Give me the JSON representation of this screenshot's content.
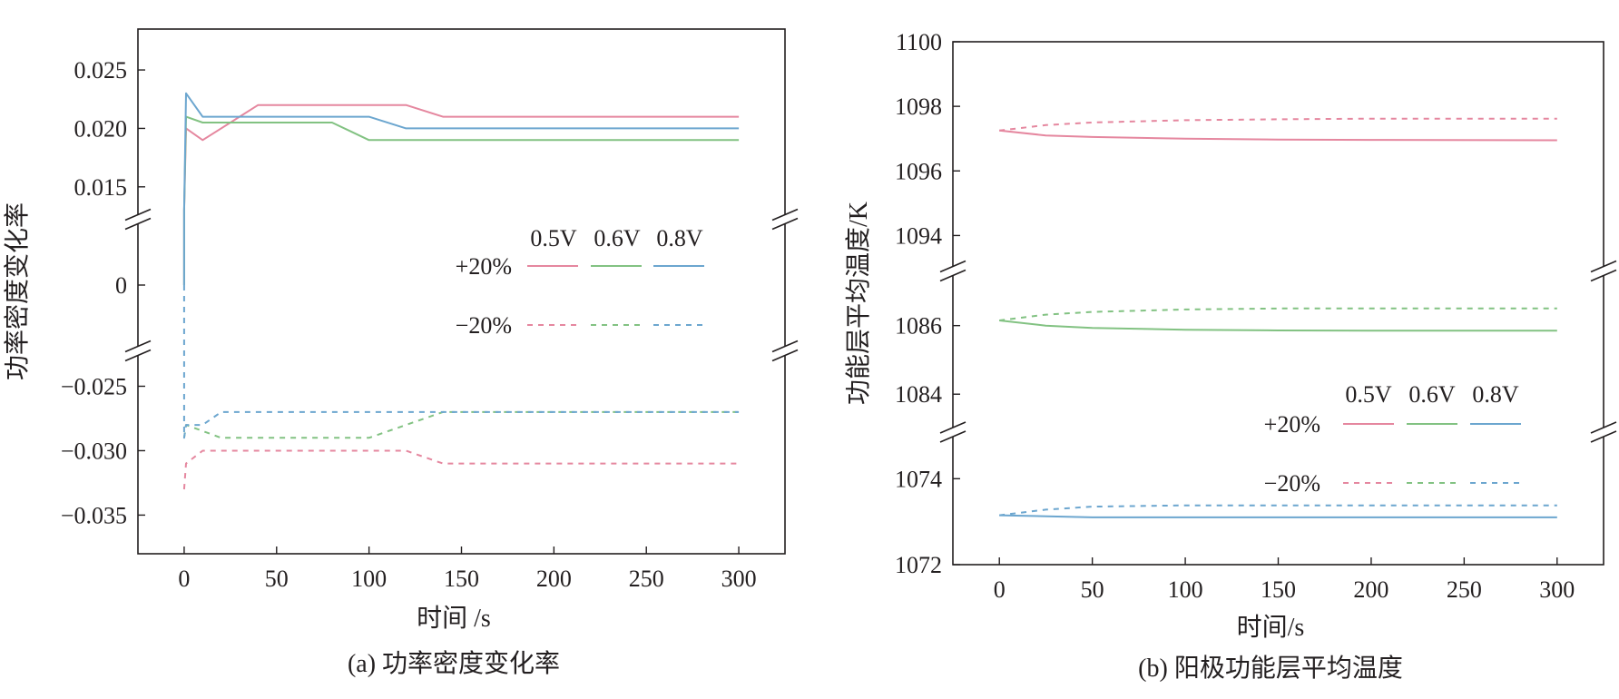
{
  "chart_data": [
    {
      "type": "line",
      "caption": "(a) 功率密度变化率",
      "xlabel": "时间 /s",
      "ylabel": "功率密度变化率",
      "xlim": [
        -25,
        325
      ],
      "x_ticks": [
        0,
        50,
        100,
        150,
        200,
        250,
        300
      ],
      "broken_y_axis": true,
      "y_panels": [
        {
          "ylim": [
            0.0125,
            0.0285
          ],
          "ticks": [
            0.015,
            0.02,
            0.025
          ],
          "tick_labels": [
            "0.015",
            "0.020",
            "0.025"
          ]
        },
        {
          "ylim": [
            -0.003,
            0.003
          ],
          "ticks": [
            0
          ],
          "tick_labels": [
            "0"
          ]
        },
        {
          "ylim": [
            -0.038,
            -0.0225
          ],
          "ticks": [
            -0.035,
            -0.03,
            -0.025
          ],
          "tick_labels": [
            "−0.035",
            "−0.030",
            "−0.025"
          ]
        }
      ],
      "legend": {
        "placement": "center-right",
        "voltages": [
          "0.5V",
          "0.6V",
          "0.8V"
        ],
        "rows": [
          "+20%",
          "−20%"
        ]
      },
      "colors": {
        "0.5V": "#e5879f",
        "0.6V": "#82c282",
        "0.8V": "#6ca6cf"
      },
      "series": [
        {
          "name": "+20% 0.5V",
          "voltage": "0.5V",
          "style": "solid",
          "x": [
            0,
            0,
            1,
            10,
            40,
            120,
            140,
            300
          ],
          "y": [
            0,
            0.013,
            0.02,
            0.019,
            0.022,
            0.022,
            0.021,
            0.021
          ]
        },
        {
          "name": "+20% 0.6V",
          "voltage": "0.6V",
          "style": "solid",
          "x": [
            0,
            0,
            1,
            10,
            80,
            100,
            300
          ],
          "y": [
            0,
            0.013,
            0.021,
            0.0205,
            0.0205,
            0.019,
            0.019
          ]
        },
        {
          "name": "+20% 0.8V",
          "voltage": "0.8V",
          "style": "solid",
          "x": [
            0,
            0,
            1,
            10,
            100,
            120,
            300
          ],
          "y": [
            0,
            0.013,
            0.023,
            0.021,
            0.021,
            0.02,
            0.02
          ]
        },
        {
          "name": "−20% 0.5V",
          "voltage": "0.5V",
          "style": "dashed",
          "x": [
            0,
            1,
            10,
            120,
            140,
            300
          ],
          "y": [
            -0.033,
            -0.031,
            -0.03,
            -0.03,
            -0.031,
            -0.031
          ]
        },
        {
          "name": "−20% 0.6V",
          "voltage": "0.6V",
          "style": "dashed",
          "x": [
            0,
            1,
            20,
            100,
            140,
            300
          ],
          "y": [
            -0.029,
            -0.028,
            -0.029,
            -0.029,
            -0.027,
            -0.027
          ]
        },
        {
          "name": "−20% 0.8V",
          "voltage": "0.8V",
          "style": "dashed",
          "x": [
            0,
            0,
            1,
            10,
            20,
            300
          ],
          "y": [
            0,
            -0.029,
            -0.028,
            -0.028,
            -0.027,
            -0.027
          ]
        }
      ]
    },
    {
      "type": "line",
      "caption": "(b) 阳极功能层平均温度",
      "xlabel": "时间/s",
      "ylabel": "功能层平均温度/K",
      "xlim": [
        -25,
        325
      ],
      "x_ticks": [
        0,
        50,
        100,
        150,
        200,
        250,
        300
      ],
      "broken_y_axis": true,
      "y_panels": [
        {
          "ylim": [
            1093,
            1100
          ],
          "ticks": [
            1094,
            1096,
            1098,
            1100
          ],
          "tick_labels": [
            "1094",
            "1096",
            "1098",
            "1100"
          ]
        },
        {
          "ylim": [
            1083,
            1087.5
          ],
          "ticks": [
            1084,
            1086
          ],
          "tick_labels": [
            "1084",
            "1086"
          ]
        },
        {
          "ylim": [
            1072,
            1075
          ],
          "ticks": [
            1072,
            1074
          ],
          "tick_labels": [
            "1072",
            "1074"
          ]
        }
      ],
      "legend": {
        "placement": "lower-right",
        "voltages": [
          "0.5V",
          "0.6V",
          "0.8V"
        ],
        "rows": [
          "+20%",
          "−20%"
        ]
      },
      "colors": {
        "0.5V": "#e5879f",
        "0.6V": "#82c282",
        "0.8V": "#6ca6cf"
      },
      "series": [
        {
          "name": "+20% 0.5V",
          "voltage": "0.5V",
          "style": "solid",
          "x": [
            0,
            25,
            50,
            100,
            150,
            200,
            300
          ],
          "y": [
            1097.25,
            1097.1,
            1097.05,
            1097.0,
            1096.97,
            1096.96,
            1096.95
          ]
        },
        {
          "name": "−20% 0.5V",
          "voltage": "0.5V",
          "style": "dashed",
          "x": [
            0,
            25,
            50,
            100,
            150,
            200,
            300
          ],
          "y": [
            1097.25,
            1097.42,
            1097.5,
            1097.57,
            1097.6,
            1097.62,
            1097.62
          ]
        },
        {
          "name": "+20% 0.6V",
          "voltage": "0.6V",
          "style": "solid",
          "x": [
            0,
            25,
            50,
            100,
            150,
            200,
            300
          ],
          "y": [
            1086.15,
            1086.0,
            1085.93,
            1085.88,
            1085.86,
            1085.85,
            1085.85
          ]
        },
        {
          "name": "−20% 0.6V",
          "voltage": "0.6V",
          "style": "dashed",
          "x": [
            0,
            25,
            50,
            100,
            150,
            200,
            300
          ],
          "y": [
            1086.15,
            1086.32,
            1086.4,
            1086.47,
            1086.5,
            1086.5,
            1086.5
          ]
        },
        {
          "name": "+20% 0.8V",
          "voltage": "0.8V",
          "style": "solid",
          "x": [
            0,
            50,
            100,
            200,
            300
          ],
          "y": [
            1073.15,
            1073.1,
            1073.1,
            1073.1,
            1073.1
          ]
        },
        {
          "name": "−20% 0.8V",
          "voltage": "0.8V",
          "style": "dashed",
          "x": [
            0,
            25,
            50,
            100,
            200,
            300
          ],
          "y": [
            1073.15,
            1073.28,
            1073.35,
            1073.38,
            1073.38,
            1073.38
          ]
        }
      ]
    }
  ]
}
